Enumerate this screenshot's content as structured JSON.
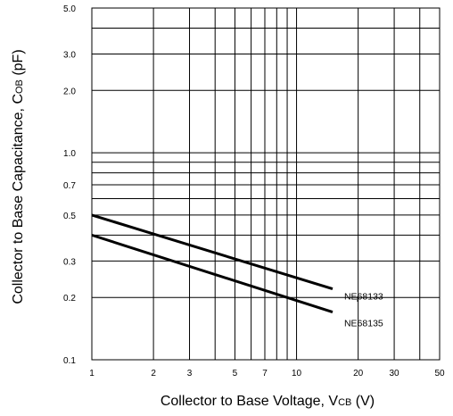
{
  "chart_data": {
    "type": "line",
    "x_scale": "log",
    "y_scale": "log",
    "grid": true,
    "xlim": [
      1,
      50
    ],
    "ylim": [
      0.1,
      5.0
    ],
    "xlabel": {
      "main": "Collector to Base Voltage, V",
      "sub": "CB",
      "unit": " (V)"
    },
    "ylabel": {
      "main": "Collector to Base Capacitance, C",
      "sub": "OB",
      "unit": " (pF)"
    },
    "x_ticks": [
      {
        "value": 1,
        "label": "1"
      },
      {
        "value": 2,
        "label": "2"
      },
      {
        "value": 3,
        "label": "3"
      },
      {
        "value": 5,
        "label": "5"
      },
      {
        "value": 7,
        "label": "7"
      },
      {
        "value": 10,
        "label": "10"
      },
      {
        "value": 20,
        "label": "20"
      },
      {
        "value": 30,
        "label": "30"
      },
      {
        "value": 50,
        "label": "50"
      }
    ],
    "x_grid": [
      1,
      2,
      3,
      4,
      5,
      6,
      7,
      8,
      9,
      10,
      20,
      30,
      40,
      50
    ],
    "y_ticks": [
      {
        "value": 0.1,
        "label": "0.1"
      },
      {
        "value": 0.2,
        "label": "0.2"
      },
      {
        "value": 0.3,
        "label": "0.3"
      },
      {
        "value": 0.5,
        "label": "0.5"
      },
      {
        "value": 0.7,
        "label": "0.7"
      },
      {
        "value": 1.0,
        "label": "1.0"
      },
      {
        "value": 2.0,
        "label": "2.0"
      },
      {
        "value": 3.0,
        "label": "3.0"
      },
      {
        "value": 5.0,
        "label": "5.0"
      }
    ],
    "y_grid": [
      0.1,
      0.2,
      0.3,
      0.4,
      0.5,
      0.6,
      0.7,
      0.8,
      0.9,
      1.0,
      2.0,
      3.0,
      4.0,
      5.0
    ],
    "series": [
      {
        "name": "NE68133",
        "x": [
          1,
          15
        ],
        "y": [
          0.5,
          0.22
        ]
      },
      {
        "name": "NE68135",
        "x": [
          1,
          15
        ],
        "y": [
          0.4,
          0.17
        ]
      }
    ],
    "line_color": "#000000",
    "grid_color": "#000000"
  }
}
